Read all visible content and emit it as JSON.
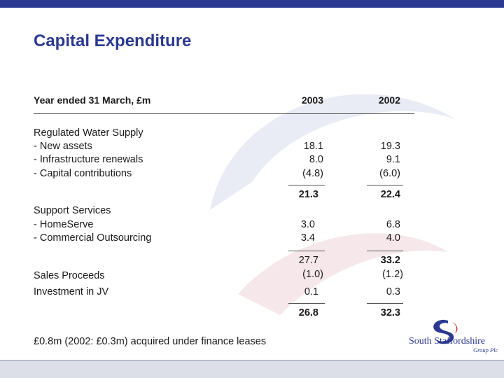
{
  "slide": {
    "title": "Capital Expenditure",
    "header": {
      "label": "Year ended 31 March, £m",
      "col1": "2003",
      "col2": "2002"
    },
    "sections": {
      "regulated": {
        "title": "Regulated Water Supply",
        "rows": [
          {
            "label": "- New assets",
            "v2003": "18.1",
            "v2002": "19.3"
          },
          {
            "label": "- Infrastructure renewals",
            "v2003": "8.0",
            "v2002": "9.1"
          },
          {
            "label": "- Capital contributions",
            "v2003": "(4.8)",
            "v2002": "(6.0)"
          }
        ],
        "subtotal": {
          "v2003": "21.3",
          "v2002": "22.4"
        }
      },
      "support": {
        "title": "Support Services",
        "rows": [
          {
            "label": "- HomeServe",
            "v2003": "3.0",
            "v2002": "6.8"
          },
          {
            "label": "- Commercial Outsourcing",
            "v2003": "3.4",
            "v2002": "4.0"
          }
        ],
        "subtotal": {
          "v2003": "27.7",
          "v2002": "33.2"
        }
      },
      "sales": {
        "label": "Sales Proceeds",
        "v2003": "(1.0)",
        "v2002": "(1.2)"
      },
      "jv": {
        "label": "Investment in JV",
        "v2003": "0.1",
        "v2002": "0.3"
      },
      "total": {
        "v2003": "26.8",
        "v2002": "32.3"
      }
    },
    "footnote": "£0.8m (2002: £0.3m) acquired under finance leases",
    "logo": {
      "name": "South Staffordshire",
      "sub": "Group Plc"
    },
    "colors": {
      "brand": "#2b3990",
      "accent": "#c8202f"
    }
  }
}
